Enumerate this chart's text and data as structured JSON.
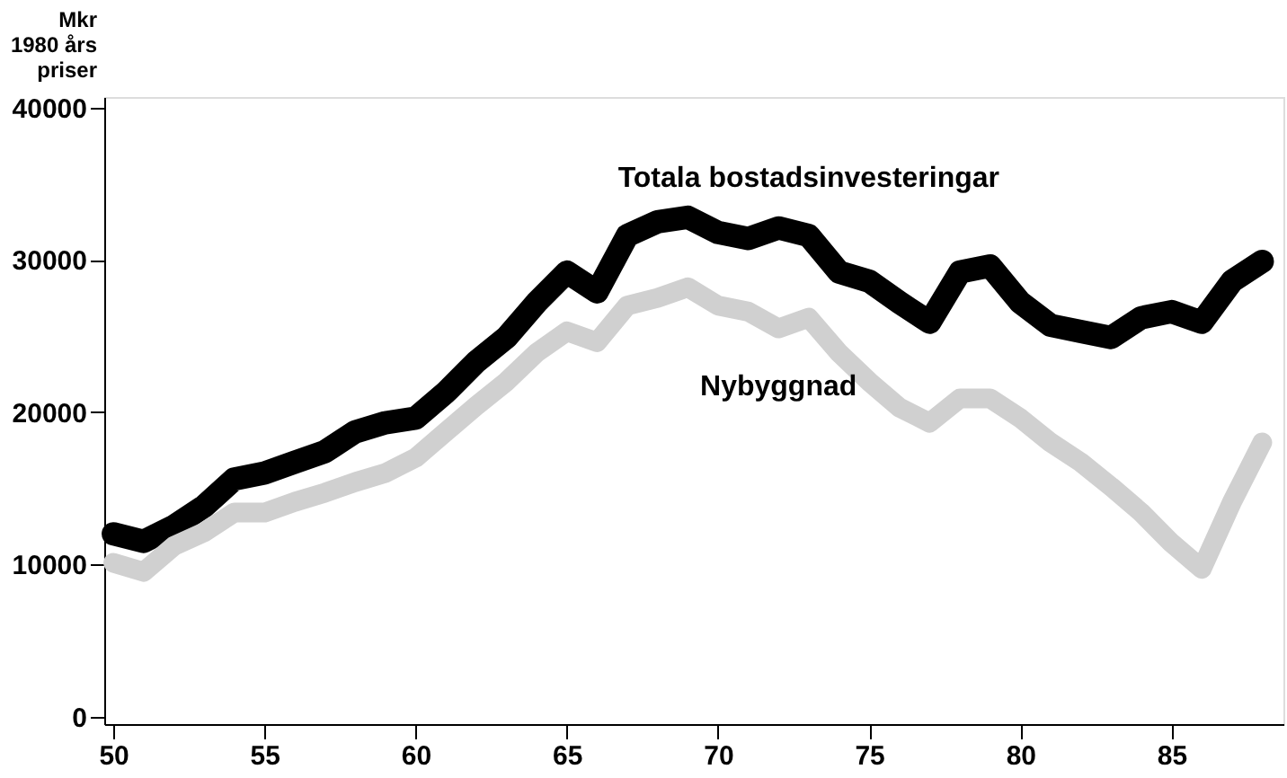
{
  "chart_data": {
    "type": "line",
    "ylabel": "Mkr\n1980 års\npriser",
    "x": [
      50,
      51,
      52,
      53,
      54,
      55,
      56,
      57,
      58,
      59,
      60,
      61,
      62,
      63,
      64,
      65,
      66,
      67,
      68,
      69,
      70,
      71,
      72,
      73,
      74,
      75,
      76,
      77,
      78,
      79,
      80,
      81,
      82,
      83,
      84,
      85,
      86,
      87,
      88
    ],
    "series": [
      {
        "name": "Totala bostadsinvesteringar",
        "color": "#000000",
        "values": [
          12000,
          11500,
          12500,
          13800,
          15600,
          16000,
          16700,
          17400,
          18700,
          19300,
          19600,
          21300,
          23300,
          24900,
          27200,
          29200,
          27900,
          31600,
          32500,
          32800,
          31800,
          31400,
          32100,
          31600,
          29200,
          28600,
          27200,
          25900,
          29200,
          29600,
          27200,
          25700,
          25300,
          24900,
          26200,
          26600,
          25900,
          28600,
          29900
        ]
      },
      {
        "name": "Nybyggnad",
        "color": "#d0d0d0",
        "values": [
          10100,
          9500,
          11200,
          12100,
          13400,
          13400,
          14100,
          14700,
          15400,
          16000,
          17000,
          18700,
          20400,
          22000,
          23900,
          25300,
          24600,
          27000,
          27500,
          28200,
          27000,
          26600,
          25500,
          26200,
          23900,
          22000,
          20300,
          19300,
          20900,
          20900,
          19600,
          18000,
          16700,
          15100,
          13400,
          11400,
          9700,
          14100,
          18000
        ]
      }
    ],
    "xlim": [
      49.7,
      88.7
    ],
    "ylim": [
      -500,
      40700
    ],
    "xticks": [
      50,
      55,
      60,
      65,
      70,
      75,
      80,
      85
    ],
    "yticks": [
      0,
      10000,
      20000,
      30000,
      40000
    ],
    "grid": false,
    "legend": false,
    "marker": "none",
    "line_style": "solid"
  }
}
